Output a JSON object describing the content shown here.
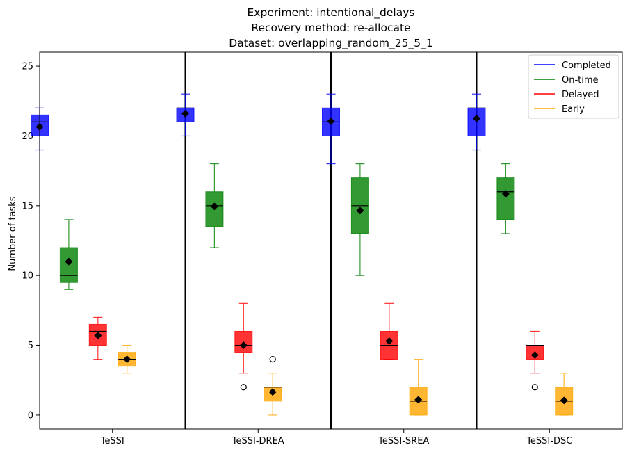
{
  "chart_data": {
    "type": "box",
    "title": [
      "Experiment: intentional_delays",
      "Recovery method: re-allocate",
      "Dataset: overlapping_random_25_5_1"
    ],
    "xlabel": "",
    "ylabel": "Number of tasks",
    "ylim": [
      -1,
      26
    ],
    "yticks": [
      0,
      5,
      10,
      15,
      20,
      25
    ],
    "categories": [
      "TeSSI",
      "TeSSI-DREA",
      "TeSSI-SREA",
      "TeSSI-DSC"
    ],
    "legend": {
      "position": "top-right",
      "entries": [
        "Completed",
        "On-time",
        "Delayed",
        "Early"
      ]
    },
    "colors": {
      "Completed": "#0000ff",
      "On-time": "#008000",
      "Delayed": "#ff0000",
      "Early": "#ffa500",
      "mean_marker": "#000000"
    },
    "series": [
      {
        "name": "Completed",
        "boxes": [
          {
            "whisker_low": 19,
            "q1": 20,
            "median": 21,
            "q3": 21.5,
            "whisker_high": 22,
            "mean": 20.65,
            "outliers": []
          },
          {
            "whisker_low": 20,
            "q1": 21,
            "median": 22,
            "q3": 22,
            "whisker_high": 23,
            "mean": 21.6,
            "outliers": []
          },
          {
            "whisker_low": 18,
            "q1": 20,
            "median": 21,
            "q3": 22,
            "whisker_high": 23,
            "mean": 21.05,
            "outliers": []
          },
          {
            "whisker_low": 19,
            "q1": 20,
            "median": 22,
            "q3": 22,
            "whisker_high": 23,
            "mean": 21.25,
            "outliers": []
          }
        ]
      },
      {
        "name": "On-time",
        "boxes": [
          {
            "whisker_low": 9,
            "q1": 9.5,
            "median": 10,
            "q3": 12,
            "whisker_high": 14,
            "mean": 11.0,
            "outliers": []
          },
          {
            "whisker_low": 12,
            "q1": 13.5,
            "median": 15,
            "q3": 16,
            "whisker_high": 18,
            "mean": 14.95,
            "outliers": []
          },
          {
            "whisker_low": 10,
            "q1": 13,
            "median": 15,
            "q3": 17,
            "whisker_high": 18,
            "mean": 14.65,
            "outliers": []
          },
          {
            "whisker_low": 13,
            "q1": 14,
            "median": 16,
            "q3": 17,
            "whisker_high": 18,
            "mean": 15.85,
            "outliers": []
          }
        ]
      },
      {
        "name": "Delayed",
        "boxes": [
          {
            "whisker_low": 4,
            "q1": 5,
            "median": 6,
            "q3": 6.5,
            "whisker_high": 7,
            "mean": 5.7,
            "outliers": []
          },
          {
            "whisker_low": 3,
            "q1": 4.5,
            "median": 5,
            "q3": 6,
            "whisker_high": 8,
            "mean": 5.0,
            "outliers": [
              2
            ]
          },
          {
            "whisker_low": 4,
            "q1": 4,
            "median": 5,
            "q3": 6,
            "whisker_high": 8,
            "mean": 5.3,
            "outliers": []
          },
          {
            "whisker_low": 3,
            "q1": 4,
            "median": 5,
            "q3": 5,
            "whisker_high": 6,
            "mean": 4.3,
            "outliers": [
              2
            ]
          }
        ]
      },
      {
        "name": "Early",
        "boxes": [
          {
            "whisker_low": 3,
            "q1": 3.5,
            "median": 4,
            "q3": 4.5,
            "whisker_high": 5,
            "mean": 4.0,
            "outliers": []
          },
          {
            "whisker_low": 0,
            "q1": 1,
            "median": 2,
            "q3": 2,
            "whisker_high": 3,
            "mean": 1.65,
            "outliers": [
              4
            ]
          },
          {
            "whisker_low": 0,
            "q1": 0,
            "median": 1,
            "q3": 2,
            "whisker_high": 4,
            "mean": 1.1,
            "outliers": []
          },
          {
            "whisker_low": 0,
            "q1": 0,
            "median": 1,
            "q3": 2,
            "whisker_high": 3,
            "mean": 1.05,
            "outliers": []
          }
        ]
      }
    ]
  }
}
